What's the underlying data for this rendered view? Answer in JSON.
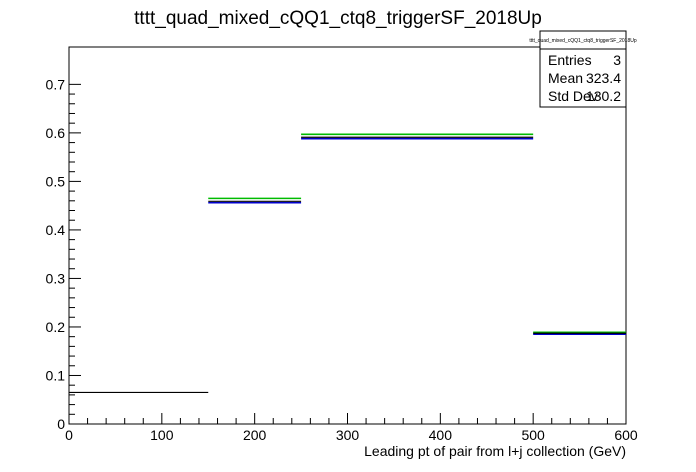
{
  "chart_data": {
    "type": "histogram",
    "title": "tttt_quad_mixed_cQQ1_ctq8_triggerSF_2018Up",
    "xlabel": "Leading pt of pair from l+j collection (GeV)",
    "ylabel": "",
    "xlim": [
      0,
      600
    ],
    "ylim": [
      0,
      0.777
    ],
    "x_ticks": [
      0,
      100,
      200,
      300,
      400,
      500,
      600
    ],
    "y_ticks": [
      0,
      0.1,
      0.2,
      0.3,
      0.4,
      0.5,
      0.6,
      0.7
    ],
    "bins": [
      {
        "x_low": 0,
        "x_high": 150
      },
      {
        "x_low": 150,
        "x_high": 250
      },
      {
        "x_low": 250,
        "x_high": 500
      },
      {
        "x_low": 500,
        "x_high": 600
      }
    ],
    "series": [
      {
        "color": "#000000",
        "values": [
          0.065,
          0.459,
          0.591,
          0.187
        ]
      },
      {
        "color": "#0000cc",
        "values": [
          null,
          0.456,
          0.588,
          0.185
        ]
      },
      {
        "color": "#00bb00",
        "values": [
          null,
          0.465,
          0.597,
          0.189
        ]
      }
    ],
    "stats_box": {
      "title": "tttt_quad_mixed_cQQ1_ctq8_triggerSF_2018Up",
      "rows": [
        {
          "label": "Entries",
          "value": "3"
        },
        {
          "label": "Mean",
          "value": "323.4"
        },
        {
          "label": "Std Dev",
          "value": "130.2"
        }
      ]
    },
    "grid": false,
    "legend": "none"
  }
}
